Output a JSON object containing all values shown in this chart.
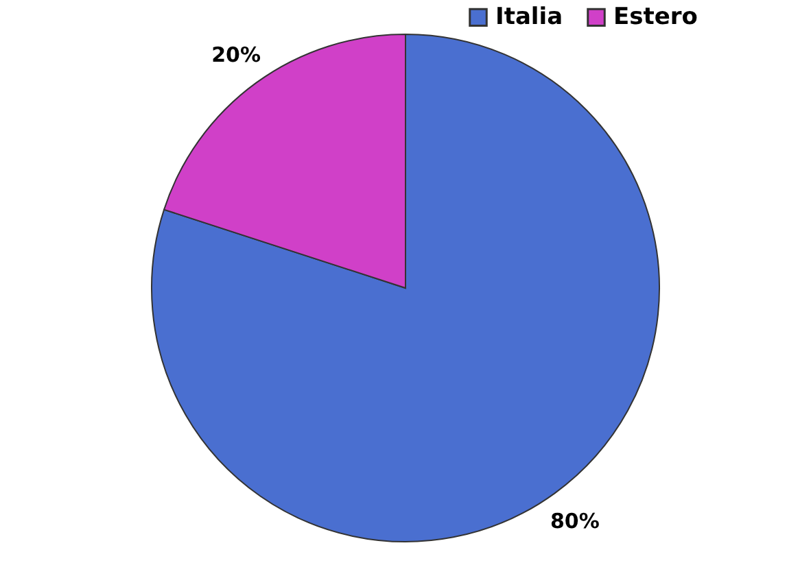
{
  "chart_data": {
    "type": "pie",
    "categories": [
      "Italia",
      "Estero"
    ],
    "values": [
      80,
      20
    ],
    "colors": [
      "#4a6fd0",
      "#d040c8"
    ],
    "value_labels": [
      "80%",
      "20%"
    ],
    "legend": "top right"
  }
}
